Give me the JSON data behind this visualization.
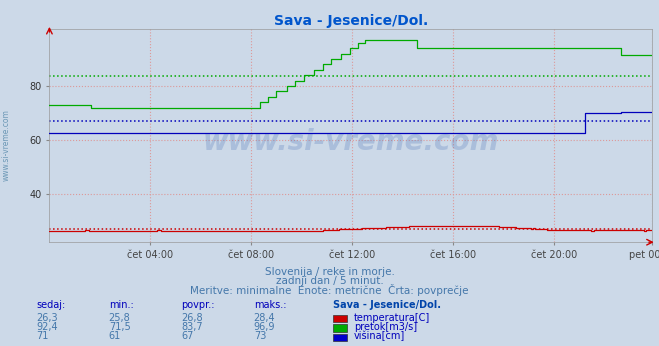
{
  "title": "Sava - Jesenice/Dol.",
  "bg_color": "#ccd9e8",
  "plot_bg_color": "#ccd9e8",
  "grid_color": "#dd9999",
  "xlabel_ticks": [
    "čet 04:00",
    "čet 08:00",
    "čet 12:00",
    "čet 16:00",
    "čet 20:00",
    "pet 00:00"
  ],
  "yticks": [
    40,
    60,
    80
  ],
  "ylim": [
    22,
    101
  ],
  "xlim": [
    0,
    287
  ],
  "title_color": "#0055cc",
  "title_fontsize": 10,
  "watermark": "www.si-vreme.com",
  "sidebar_text": "www.si-vreme.com",
  "sidebar_color": "#5588aa",
  "footer_line1": "Slovenija / reke in morje.",
  "footer_line2": "zadnji dan / 5 minut.",
  "footer_line3": "Meritve: minimalne  Enote: metrične  Črta: povprečje",
  "footer_color": "#4477aa",
  "footer_fontsize": 7.5,
  "table_header_labels": [
    "sedaj:",
    "min.:",
    "povpr.:",
    "maks.:",
    "Sava - Jesenice/Dol."
  ],
  "table_rows": [
    {
      "values": [
        "26,3",
        "25,8",
        "26,8",
        "28,4"
      ],
      "label": "temperatura[C]",
      "color": "#cc0000"
    },
    {
      "values": [
        "92,4",
        "71,5",
        "83,7",
        "96,9"
      ],
      "label": "pretok[m3/s]",
      "color": "#00aa00"
    },
    {
      "values": [
        "71",
        "61",
        "67",
        "73"
      ],
      "label": "višina[cm]",
      "color": "#0000cc"
    }
  ],
  "avg_temp": 26.8,
  "avg_pretok": 83.7,
  "avg_visina": 67.0,
  "temp_color": "#cc0000",
  "pretok_color": "#00aa00",
  "visina_color": "#0000bb",
  "n_points": 288,
  "tick_positions": [
    48,
    96,
    144,
    192,
    240,
    287
  ]
}
